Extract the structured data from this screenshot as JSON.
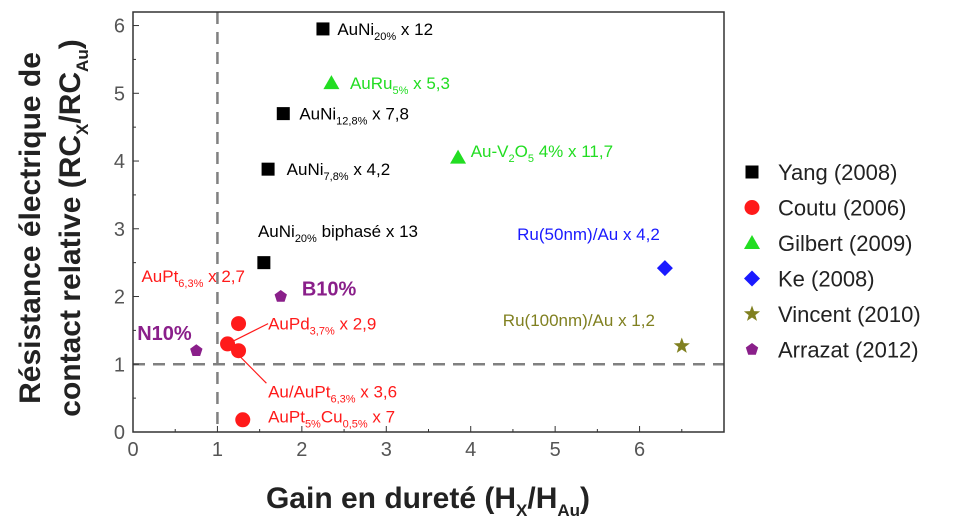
{
  "chart_data": {
    "type": "scatter",
    "xlabel": "Gain en dureté (H",
    "xlabel_sub1": "X",
    "xlabel_mid": "/H",
    "xlabel_sub2": "Au",
    "xlabel_end": ")",
    "ylabel_line1": "Résistance électrique de",
    "ylabel_line2": "contact relative (RC",
    "ylabel_sub1": "X",
    "ylabel_mid": "/RC",
    "ylabel_sub2": "Au",
    "ylabel_end": ")",
    "xlim": [
      0,
      7
    ],
    "ylim": [
      0,
      6.2
    ],
    "xticks": [
      "0",
      "1",
      "2",
      "3",
      "4",
      "5",
      "6"
    ],
    "yticks": [
      "0",
      "1",
      "2",
      "3",
      "4",
      "5",
      "6"
    ],
    "reference_lines": [
      {
        "axis": "x",
        "value": 1
      },
      {
        "axis": "y",
        "value": 1
      }
    ],
    "legend_position": "right",
    "series": [
      {
        "name": "Yang (2008)",
        "marker": "square",
        "color": "#000000",
        "points": [
          {
            "x": 2.25,
            "y": 5.95
          },
          {
            "x": 1.78,
            "y": 4.7
          },
          {
            "x": 1.6,
            "y": 3.88
          },
          {
            "x": 1.55,
            "y": 2.5
          }
        ]
      },
      {
        "name": "Coutu (2006)",
        "marker": "circle",
        "color": "#ff1a1a",
        "points": [
          {
            "x": 1.25,
            "y": 1.6
          },
          {
            "x": 1.12,
            "y": 1.3
          },
          {
            "x": 1.25,
            "y": 1.2
          },
          {
            "x": 1.3,
            "y": 0.18
          }
        ]
      },
      {
        "name": "Gilbert (2009)",
        "marker": "triangle",
        "color": "#22dd22",
        "points": [
          {
            "x": 2.35,
            "y": 5.15
          },
          {
            "x": 3.85,
            "y": 4.05
          }
        ]
      },
      {
        "name": "Ke (2008)",
        "marker": "diamond",
        "color": "#1a1aff",
        "points": [
          {
            "x": 6.3,
            "y": 2.42
          }
        ]
      },
      {
        "name": "Vincent (2010)",
        "marker": "star",
        "color": "#808020",
        "points": [
          {
            "x": 6.5,
            "y": 1.27
          }
        ]
      },
      {
        "name": "Arrazat (2012)",
        "marker": "pentagon",
        "color": "#8a1f8a",
        "points": [
          {
            "x": 1.75,
            "y": 2.0
          },
          {
            "x": 0.75,
            "y": 1.2
          }
        ]
      }
    ],
    "annotations": [
      {
        "x": 2.42,
        "y": 5.95,
        "color": "#000000",
        "parts": [
          "AuNi",
          "20%",
          " x 12"
        ]
      },
      {
        "x": 2.57,
        "y": 5.15,
        "color": "#22dd22",
        "parts": [
          "AuRu",
          "5%",
          " x 5,3"
        ]
      },
      {
        "x": 1.97,
        "y": 4.7,
        "color": "#000000",
        "parts": [
          "AuNi",
          "12,8%",
          " x 7,8"
        ]
      },
      {
        "x": 1.82,
        "y": 3.88,
        "color": "#000000",
        "parts": [
          "AuNi",
          "7,8%",
          " x 4,2"
        ]
      },
      {
        "x": 4.0,
        "y": 4.15,
        "color": "#22dd22",
        "parts": [
          "Au-V",
          "2",
          "O",
          "5",
          " 4% x 11,7"
        ]
      },
      {
        "x": 1.48,
        "y": 2.97,
        "color": "#000000",
        "parts": [
          "AuNi",
          "20%",
          " biphasé x 13"
        ]
      },
      {
        "x": 4.55,
        "y": 2.92,
        "color": "#1a1aff",
        "parts": [
          "Ru(50nm)/Au x 4,2"
        ]
      },
      {
        "x": 0.1,
        "y": 2.3,
        "color": "#ff1a1a",
        "parts": [
          "AuPt",
          "6,3%",
          " x 2,7"
        ]
      },
      {
        "x": 2.0,
        "y": 2.1,
        "color": "#8a1f8a",
        "bold": true,
        "parts": [
          "B10%"
        ]
      },
      {
        "x": 4.38,
        "y": 1.65,
        "color": "#808020",
        "parts": [
          "Ru(100nm)/Au x 1,2"
        ]
      },
      {
        "x": 1.6,
        "y": 1.6,
        "color": "#ff1a1a",
        "parts": [
          "AuPd",
          "3,7%",
          " x 2,9"
        ]
      },
      {
        "x": 0.05,
        "y": 1.45,
        "color": "#8a1f8a",
        "bold": true,
        "parts": [
          "N10%"
        ]
      },
      {
        "x": 1.6,
        "y": 0.6,
        "color": "#ff1a1a",
        "parts": [
          "Au/AuPt",
          "6,3%",
          " x 3,6"
        ]
      },
      {
        "x": 1.6,
        "y": 0.23,
        "color": "#ff1a1a",
        "parts": [
          "AuPt",
          "5%",
          "Cu",
          "0,5%",
          " x 7"
        ]
      }
    ]
  }
}
